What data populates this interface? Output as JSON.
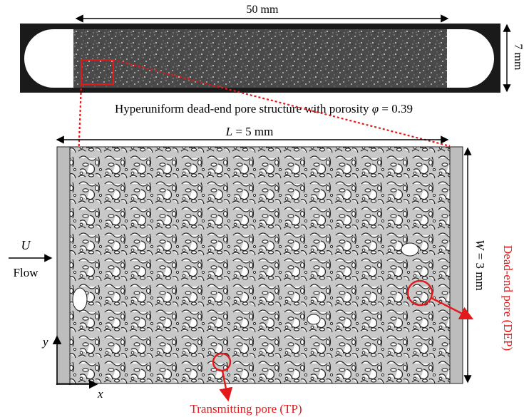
{
  "top_panel": {
    "dimension_length": "50 mm",
    "dimension_height": "7 mm",
    "caption_prefix": "Hyperuniform dead-end pore structure with porosity ",
    "caption_symbol": "φ",
    "caption_value": " = 0.39"
  },
  "main_panel": {
    "length_symbol": "L",
    "length_value": " = 5 mm",
    "width_symbol": "W",
    "width_value": " = 3 mm",
    "inlet_velocity_symbol": "U",
    "flow_label": "Flow",
    "axis_x": "x",
    "axis_y": "y",
    "dep_label": "Dead-end pore (DEP)",
    "tp_label": "Transmitting pore (TP)"
  },
  "colors": {
    "highlight": "#e3191b",
    "pore_fill": "#c8c8c8",
    "inlet_bar": "#bdbdbd",
    "dark_frame": "#1a1a1a",
    "grain_stroke": "#2a2a2a"
  }
}
